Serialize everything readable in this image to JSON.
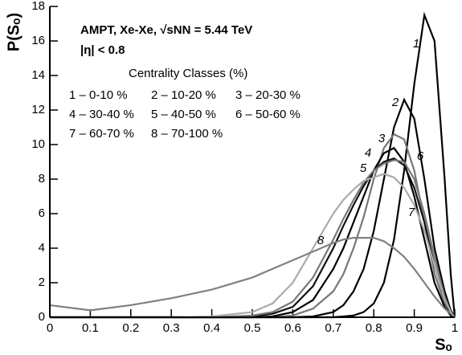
{
  "chart_data": {
    "type": "line",
    "xlabel": "Sₒ",
    "ylabel": "P(Sₒ)",
    "annotations": [
      "AMPT, Xe-Xe, √sNN = 5.44 TeV",
      "|η| < 0.8",
      "Centrality Classes (%)"
    ],
    "x": [
      0,
      0.1,
      0.2,
      0.3,
      0.4,
      0.5,
      0.55,
      0.6,
      0.65,
      0.7,
      0.725,
      0.75,
      0.775,
      0.8,
      0.825,
      0.85,
      0.875,
      0.9,
      0.925,
      0.95,
      0.975,
      0.99,
      1
    ],
    "series": [
      {
        "name": "1 – 0-10 %",
        "label": "1",
        "color": "#000000",
        "values": [
          0,
          0,
          0,
          0,
          0,
          0,
          0,
          0,
          0,
          0,
          0.05,
          0.1,
          0.3,
          0.8,
          2,
          4.5,
          8.5,
          13.5,
          17.5,
          16,
          8,
          2.5,
          0
        ]
      },
      {
        "name": "2 – 10-20 %",
        "label": "2",
        "color": "#000000",
        "values": [
          0,
          0,
          0,
          0,
          0,
          0,
          0,
          0,
          0.05,
          0.3,
          0.7,
          1.5,
          2.8,
          5,
          8,
          11,
          12.6,
          11.5,
          8,
          4,
          1.5,
          0.4,
          0
        ]
      },
      {
        "name": "3 – 20-30 %",
        "label": "3",
        "color": "#777777",
        "values": [
          0,
          0,
          0,
          0,
          0,
          0,
          0,
          0.1,
          0.5,
          1.5,
          2.5,
          4,
          5.8,
          8,
          9.8,
          10.6,
          10.3,
          8.5,
          5.5,
          2.5,
          0.8,
          0.2,
          0
        ]
      },
      {
        "name": "4 – 30-40 %",
        "label": "4",
        "color": "#000000",
        "values": [
          0,
          0,
          0,
          0,
          0,
          0,
          0.05,
          0.3,
          1,
          2.8,
          4,
          5.5,
          7,
          8.5,
          9.5,
          9.8,
          9,
          7,
          4.5,
          2,
          0.6,
          0.1,
          0
        ]
      },
      {
        "name": "5 – 40-50 %",
        "label": "5",
        "color": "#111111",
        "values": [
          0,
          0,
          0,
          0,
          0,
          0.05,
          0.2,
          0.6,
          1.8,
          4,
          5.3,
          6.5,
          7.6,
          8.5,
          9,
          9.2,
          8.8,
          7.5,
          5.5,
          3,
          1,
          0.2,
          0
        ]
      },
      {
        "name": "6 – 50-60 %",
        "label": "6",
        "color": "#777777",
        "values": [
          0,
          0,
          0,
          0,
          0,
          0.1,
          0.3,
          0.9,
          2.3,
          4.5,
          5.7,
          6.8,
          7.8,
          8.5,
          8.9,
          9.1,
          9,
          8,
          6,
          3.5,
          1.2,
          0.3,
          0
        ]
      },
      {
        "name": "7 – 60-70 %",
        "label": "7",
        "color": "#aaaaaa",
        "values": [
          0,
          0,
          0,
          0,
          0.05,
          0.3,
          0.8,
          2,
          4,
          6,
          6.8,
          7.4,
          7.9,
          8.1,
          8.3,
          8.1,
          7.5,
          6.5,
          5,
          3,
          1,
          0.3,
          0
        ]
      },
      {
        "name": "8 – 70-100 %",
        "label": "8",
        "color": "#808080",
        "values": [
          0.7,
          0.4,
          0.7,
          1.1,
          1.6,
          2.3,
          2.8,
          3.3,
          3.8,
          4.3,
          4.5,
          4.6,
          4.6,
          4.6,
          4.4,
          4,
          3.5,
          2.8,
          2,
          1.2,
          0.5,
          0.2,
          0
        ]
      }
    ],
    "xlim": [
      0,
      1
    ],
    "xticks": [
      0,
      0.1,
      0.2,
      0.3,
      0.4,
      0.5,
      0.6,
      0.7,
      0.8,
      0.9,
      1
    ],
    "ylim": [
      0,
      18
    ],
    "yticks": [
      0,
      2,
      4,
      6,
      8,
      10,
      12,
      14,
      16,
      18
    ],
    "grid": false
  }
}
